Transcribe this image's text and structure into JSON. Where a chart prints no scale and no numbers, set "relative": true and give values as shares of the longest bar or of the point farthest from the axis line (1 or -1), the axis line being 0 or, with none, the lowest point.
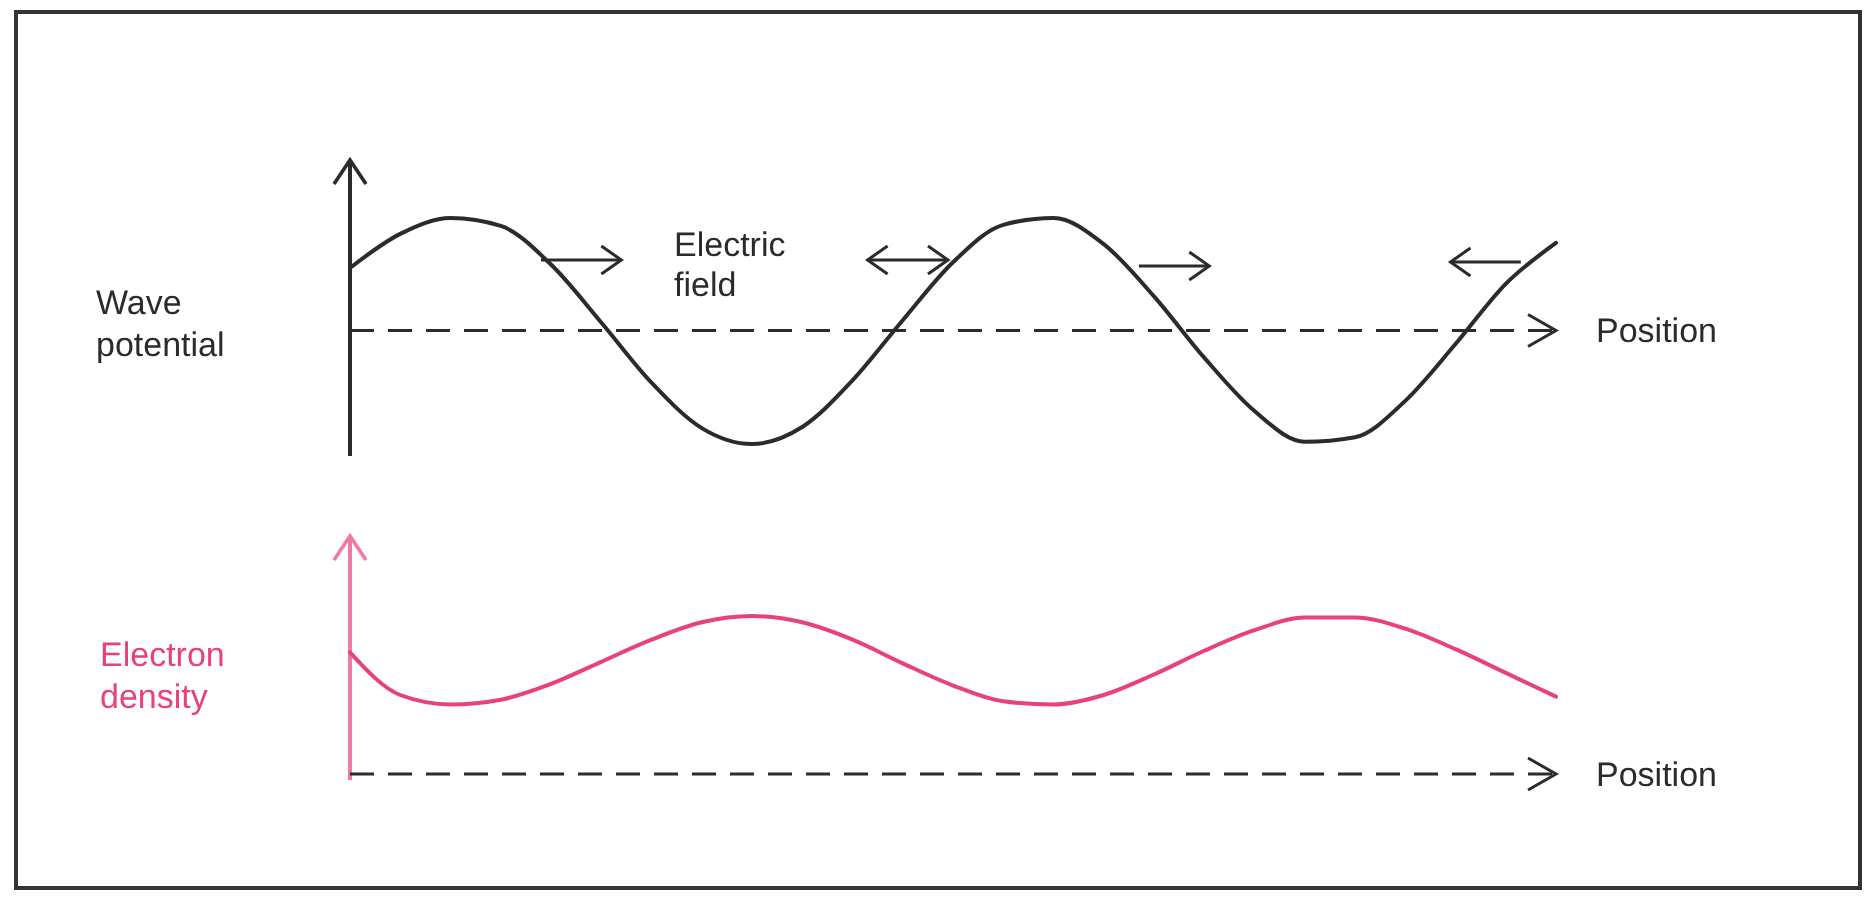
{
  "chart_data": [
    {
      "type": "line",
      "relative": true,
      "ylabel": "Wave potential",
      "xlabel": "Position",
      "annotations": [
        "Electric field"
      ],
      "ref_lines": [
        {
          "axis": "y",
          "value": 0,
          "line_style": "dashed",
          "color": "#2b2b2b"
        }
      ],
      "categories": [
        null,
        null,
        null,
        null,
        null,
        null,
        null,
        null,
        null,
        null,
        null,
        null,
        null,
        null,
        null,
        null,
        null,
        null,
        null,
        null,
        null,
        null,
        null,
        null,
        null
      ],
      "series": [
        {
          "color": "#2b2b2b",
          "values": [
            0.55,
            0.85,
            0.99,
            0.92,
            0.58,
            0.07,
            -0.46,
            -0.86,
            -1.0,
            -0.85,
            -0.44,
            0.09,
            0.6,
            0.93,
            0.99,
            0.76,
            0.3,
            -0.24,
            -0.71,
            -0.98,
            -0.94,
            -0.62,
            -0.12,
            0.41,
            0.77
          ]
        }
      ]
    },
    {
      "type": "line",
      "relative": true,
      "ylabel": "Electron density",
      "xlabel": "Position",
      "ref_lines": [
        {
          "axis": "y",
          "value": 0,
          "line_style": "dashed",
          "color": "#2b2b2b"
        }
      ],
      "categories": [
        null,
        null,
        null,
        null,
        null,
        null,
        null,
        null,
        null,
        null,
        null,
        null,
        null,
        null,
        null,
        null,
        null,
        null,
        null,
        null,
        null,
        null,
        null,
        null,
        null
      ],
      "series": [
        {
          "color": "#e8427a",
          "values": [
            0.77,
            0.5,
            0.44,
            0.47,
            0.57,
            0.71,
            0.85,
            0.96,
            1.0,
            0.96,
            0.85,
            0.7,
            0.56,
            0.46,
            0.44,
            0.5,
            0.63,
            0.78,
            0.91,
            0.99,
            0.99,
            0.92,
            0.79,
            0.64,
            0.49
          ]
        }
      ]
    }
  ]
}
